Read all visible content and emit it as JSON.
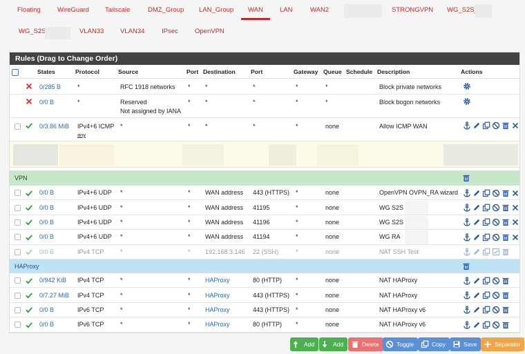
{
  "tabs": {
    "row1": [
      "Floating",
      "WireGuard",
      "Tailscale",
      "DMZ_Group",
      "LAN_Group",
      "WAN",
      "LAN",
      "WAN2",
      "STRONGVPN",
      "WG_S2S_"
    ],
    "row2": [
      "WG_S2S_",
      "VLAN33",
      "VLAN34",
      "IPsec",
      "OpenVPN"
    ],
    "active": "WAN"
  },
  "panel": {
    "title": "Rules (Drag to Change Order)"
  },
  "columns": {
    "states": "States",
    "protocol": "Protocol",
    "source": "Source",
    "port": "Port",
    "destination": "Destination",
    "dport": "Port",
    "gateway": "Gateway",
    "queue": "Queue",
    "schedule": "Schedule",
    "description": "Description",
    "actions": "Actions"
  },
  "top_rules": [
    {
      "states": "0/285 B",
      "protocol": "*",
      "source": "RFC 1918 networks",
      "port": "*",
      "destination": "*",
      "dport": "*",
      "gateway": "*",
      "queue": "*",
      "description": "Block private networks"
    },
    {
      "states": "0/0 B",
      "protocol": "*",
      "source": "Reserved",
      "source2": "Not assigned by IANA",
      "port": "*",
      "destination": "*",
      "dport": "*",
      "gateway": "*",
      "queue": "*",
      "description": "Block bogon networks"
    },
    {
      "states": "0/3.86 MiB",
      "protocol": "IPv4+6 ICMP",
      "protocol_sub": "any",
      "source": "*",
      "port": "*",
      "destination": "*",
      "dport": "*",
      "gateway": "*",
      "queue": "none",
      "description": "Allow ICMP WAN"
    }
  ],
  "separators": {
    "vpn": "VPN",
    "haproxy": "HAProxy"
  },
  "vpn_rules": [
    {
      "states": "0/0 B",
      "protocol": "IPv4+6 UDP",
      "source": "*",
      "port": "*",
      "destination": "WAN address",
      "dport": "443 (HTTPS)",
      "gateway": "*",
      "queue": "none",
      "description": "OpenVPN OVPN_RA wizard"
    },
    {
      "states": "0/0 B",
      "protocol": "IPv4+6 UDP",
      "source": "*",
      "port": "*",
      "destination": "WAN address",
      "dport": "41195",
      "gateway": "*",
      "queue": "none",
      "description": "WG S2S"
    },
    {
      "states": "0/0 B",
      "protocol": "IPv4+6 UDP",
      "source": "*",
      "port": "*",
      "destination": "WAN address",
      "dport": "41196",
      "gateway": "*",
      "queue": "none",
      "description": "WG S2S"
    },
    {
      "states": "0/0 B",
      "protocol": "IPv4+6 UDP",
      "source": "*",
      "port": "*",
      "destination": "WAN address",
      "dport": "41194",
      "gateway": "*",
      "queue": "none",
      "description": "WG RA"
    },
    {
      "states": "0/0 B",
      "protocol": "IPv4 TCP",
      "source": "*",
      "port": "*",
      "destination": "192.168.3.146",
      "dport": "22 (SSH)",
      "gateway": "*",
      "queue": "none",
      "description": "NAT SSH Test"
    }
  ],
  "ha_rules": [
    {
      "states": "0/942 KiB",
      "protocol": "IPv4 TCP",
      "source": "*",
      "port": "*",
      "destination": "HAProxy",
      "dport": "80 (HTTP)",
      "gateway": "*",
      "queue": "none",
      "description": "NAT HAProxy"
    },
    {
      "states": "0/7.27 MiB",
      "protocol": "IPv4 TCP",
      "source": "*",
      "port": "*",
      "destination": "HAProxy",
      "dport": "443 (HTTPS)",
      "gateway": "*",
      "queue": "none",
      "description": "NAT HAProxy"
    },
    {
      "states": "0/0 B",
      "protocol": "IPv6 TCP",
      "source": "*",
      "port": "*",
      "destination": "HAProxy",
      "dport": "443 (HTTPS)",
      "gateway": "*",
      "queue": "none",
      "description": "NAT HAProxy v6"
    },
    {
      "states": "0/0 B",
      "protocol": "IPv6 TCP",
      "source": "*",
      "port": "*",
      "destination": "HAProxy",
      "dport": "80 (HTTP)",
      "gateway": "*",
      "queue": "none",
      "description": "NAT HAProxy v6"
    }
  ],
  "buttons": {
    "add_top": "Add",
    "add_bottom": "Add",
    "delete": "Delete",
    "toggle": "Toggle",
    "copy": "Copy",
    "save": "Save",
    "separator": "Separator"
  },
  "colors": {
    "accent": "#b62d2d",
    "pass": "#2e9e3e",
    "block": "#d32f2f",
    "link": "#2a6aa6",
    "action": "#2a5d9f"
  }
}
